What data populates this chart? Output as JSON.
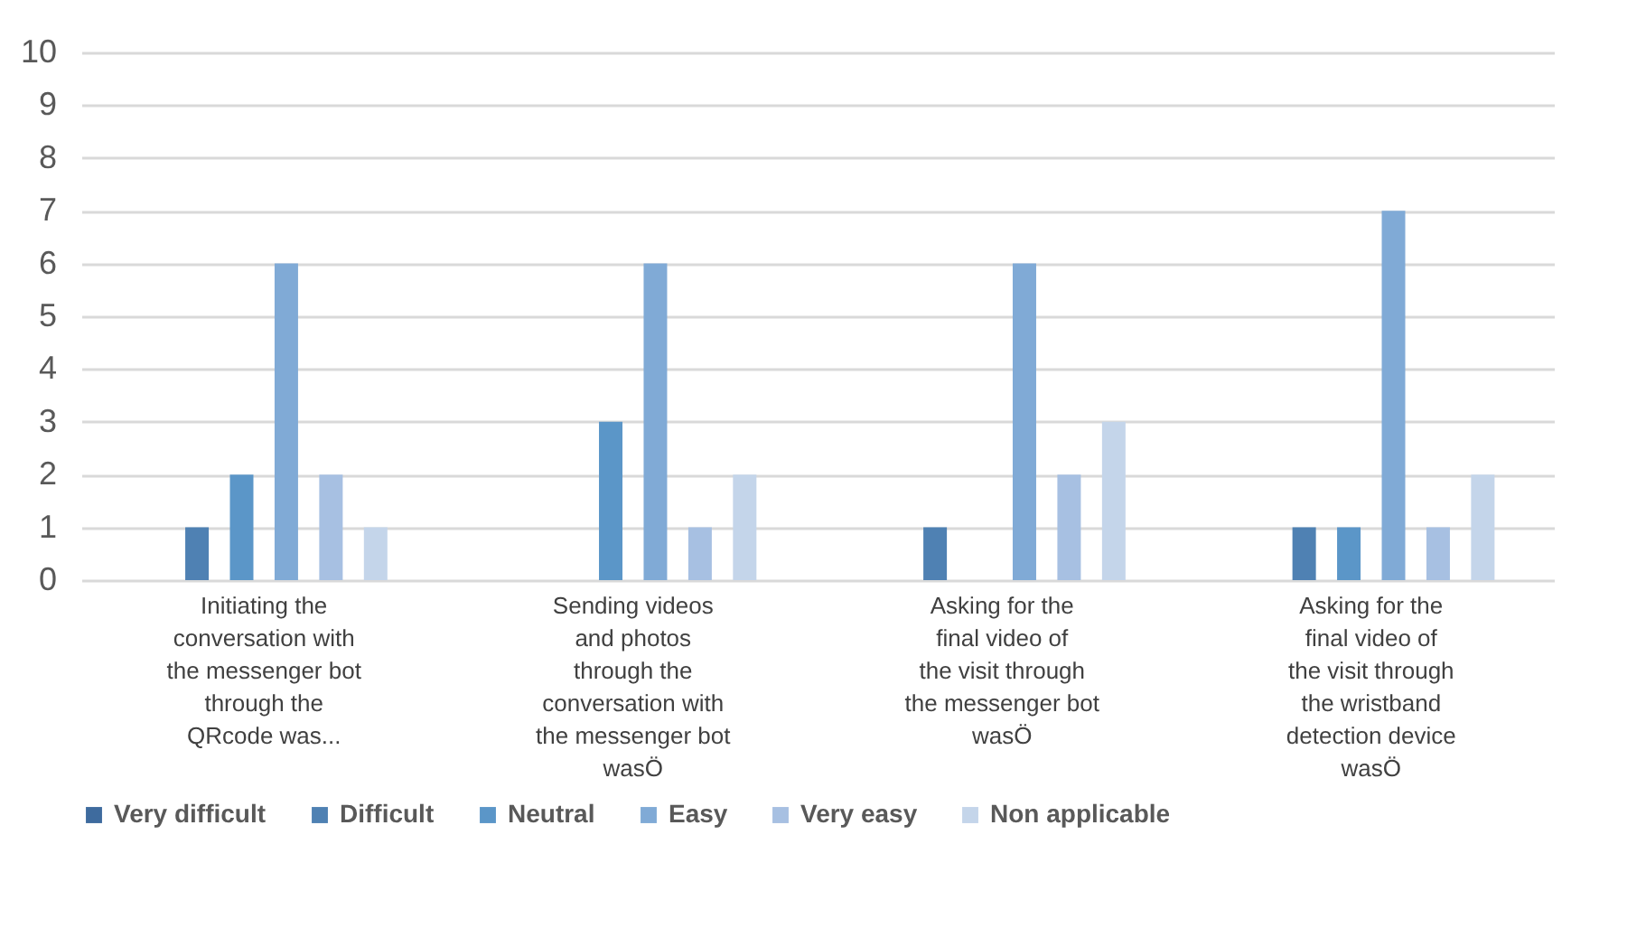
{
  "chart_data": {
    "type": "bar",
    "categories": [
      "Initiating the conversation with the messenger bot through the QRcode was...",
      "Sending videos and photos through the conversation with the messenger bot wasÖ",
      "Asking for the final video of the visit through the messenger bot wasÖ",
      "Asking for the final video of the visit through the wristband detection device wasÖ"
    ],
    "series": [
      {
        "name": "Very difficult",
        "color": "#3e6b9e",
        "values": [
          0,
          0,
          0,
          0
        ]
      },
      {
        "name": "Difficult",
        "color": "#4f81b3",
        "values": [
          1,
          0,
          1,
          1
        ]
      },
      {
        "name": "Neutral",
        "color": "#5b96c8",
        "values": [
          2,
          3,
          0,
          1
        ]
      },
      {
        "name": "Easy",
        "color": "#80aad6",
        "values": [
          6,
          6,
          6,
          7
        ]
      },
      {
        "name": "Very easy",
        "color": "#a7c0e2",
        "values": [
          2,
          1,
          2,
          1
        ]
      },
      {
        "name": "Non applicable",
        "color": "#c4d5ea",
        "values": [
          1,
          2,
          3,
          2
        ]
      }
    ],
    "ylim": [
      0,
      10
    ],
    "yticks": [
      0,
      1,
      2,
      3,
      4,
      5,
      6,
      7,
      8,
      9,
      10
    ],
    "grid": "y",
    "legend": "bottom"
  }
}
